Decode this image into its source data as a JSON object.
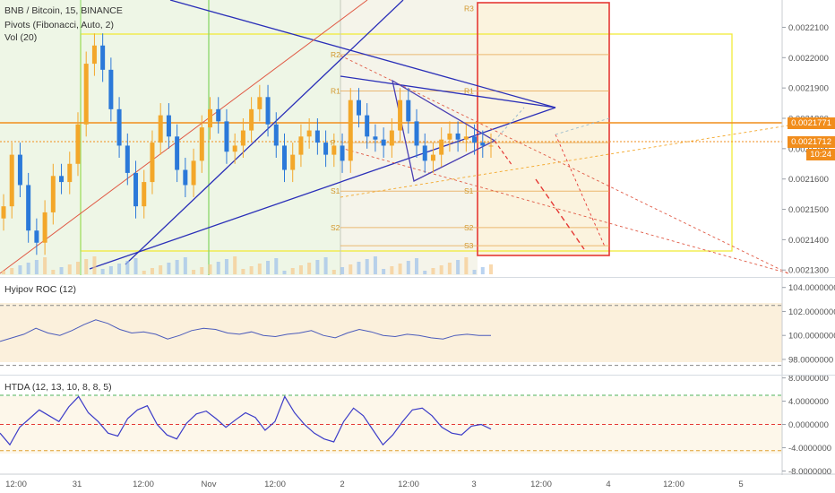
{
  "symbol": {
    "title": "BNB / Bitcoin, 15, BINANCE",
    "pivots": "Pivots (Fibonacci, Auto, 2)",
    "vol": "Vol (20)"
  },
  "panes": {
    "roc_title": "Hyipov ROC (12)",
    "htda_title": "HTDA (12, 13, 10, 8, 8, 5)"
  },
  "price_tags": {
    "upper": "0.0021771",
    "current": "0.0021712",
    "countdown": "10:24"
  },
  "colors": {
    "up": "#f3a72a",
    "down": "#2b79d9",
    "pivot": "#e6a34a",
    "trend": "#2a2fb8",
    "yellow_box": "#f0ea3a",
    "red_box": "#e53935",
    "roc_line": "#4b5bbb",
    "htda_line": "#3c3cc8"
  },
  "pivots": [
    "R3",
    "R2",
    "R1",
    "P",
    "S1",
    "S2",
    "S3"
  ],
  "chart_data": [
    {
      "type": "candlestick",
      "title": "BNB / Bitcoin, 15, BINANCE",
      "x_ticks": [
        "12:00",
        "31",
        "12:00",
        "Nov",
        "12:00",
        "2",
        "12:00",
        "3",
        "12:00",
        "4",
        "12:00",
        "5"
      ],
      "y_ticks": [
        0.00213,
        0.00214,
        0.00215,
        0.00216,
        0.00217,
        0.00218,
        0.00219,
        0.0022,
        0.00221
      ],
      "y_tick_labels": [
        "0.0021300",
        "0.0021400",
        "0.0021500",
        "0.0021600",
        "0.0021700",
        "0.0021800",
        "0.0021900",
        "0.0022000",
        "0.0022100"
      ],
      "ylim": [
        0.002128,
        0.002219
      ],
      "close": [
        0.002151,
        0.002168,
        0.002158,
        0.002143,
        0.002139,
        0.002149,
        0.002161,
        0.002159,
        0.002165,
        0.002178,
        0.002198,
        0.002204,
        0.002196,
        0.002183,
        0.002171,
        0.002162,
        0.002151,
        0.002159,
        0.002172,
        0.002181,
        0.002174,
        0.002163,
        0.002158,
        0.002166,
        0.002177,
        0.002183,
        0.002179,
        0.002169,
        0.002171,
        0.002176,
        0.002183,
        0.002187,
        0.002178,
        0.002171,
        0.002163,
        0.002168,
        0.002174,
        0.002176,
        0.002172,
        0.002168,
        0.002171,
        0.002166,
        0.002186,
        0.002181,
        0.002174,
        0.002173,
        0.002171,
        0.002176,
        0.002186,
        0.002179,
        0.002171,
        0.002166,
        0.002168,
        0.002173,
        0.002175,
        0.002173,
        0.002174,
        0.002172,
        0.002171,
        0.002171
      ],
      "pivot_levels": {
        "R3": 0.002218,
        "R2": 0.002201,
        "R1": 0.002189,
        "P": 0.002172,
        "S1": 0.002156,
        "S2": 0.002144,
        "S3": 0.002138
      }
    },
    {
      "type": "line",
      "title": "Hyipov ROC (12)",
      "y_ticks": [
        98,
        100,
        102,
        104
      ],
      "y_tick_labels": [
        "98.0000000",
        "100.0000000",
        "102.0000000",
        "104.0000000"
      ],
      "ylim": [
        96.8,
        104.8
      ],
      "reference_lines": [
        97.5,
        102.5
      ],
      "values": [
        99.5,
        99.8,
        100.1,
        100.6,
        100.2,
        100.0,
        100.4,
        100.9,
        101.3,
        101.0,
        100.5,
        100.2,
        100.3,
        100.1,
        99.7,
        100.0,
        100.4,
        100.6,
        100.5,
        100.2,
        100.1,
        100.3,
        100.0,
        99.9,
        100.1,
        100.2,
        100.4,
        100.0,
        99.8,
        100.2,
        100.5,
        100.3,
        100.0,
        99.9,
        100.1,
        100.0,
        99.8,
        99.7,
        100.0,
        100.1,
        100.0,
        100.0
      ]
    },
    {
      "type": "line",
      "title": "HTDA (12, 13, 10, 8, 8, 5)",
      "y_ticks": [
        -8,
        -4,
        0,
        4,
        8
      ],
      "y_tick_labels": [
        "-8.0000000",
        "-4.0000000",
        "0.0000000",
        "4.0000000",
        "8.0000000"
      ],
      "ylim": [
        -8.4,
        8.4
      ],
      "reference_lines": [
        5,
        0,
        -4.5
      ],
      "values": [
        -1.5,
        -3.5,
        -0.5,
        1.0,
        2.5,
        1.5,
        0.5,
        3.0,
        4.8,
        2.0,
        0.5,
        -1.5,
        -2.0,
        1.0,
        2.5,
        3.2,
        0.0,
        -1.8,
        -2.5,
        0.2,
        1.8,
        2.3,
        1.0,
        -0.5,
        0.8,
        2.0,
        1.2,
        -1.0,
        0.5,
        4.8,
        2.0,
        0.0,
        -1.5,
        -2.5,
        -3.0,
        0.5,
        2.8,
        1.5,
        -1.0,
        -3.5,
        -1.8,
        0.5,
        2.5,
        2.8,
        1.5,
        -0.5,
        -1.5,
        -1.8,
        -0.3,
        0.0,
        -0.8
      ]
    }
  ]
}
